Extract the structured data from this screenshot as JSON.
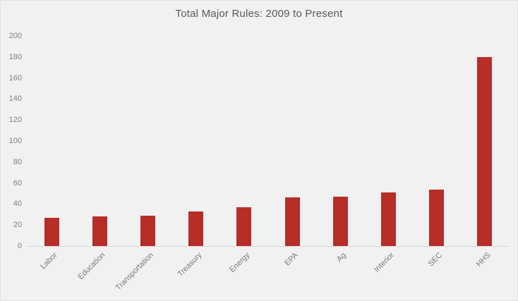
{
  "window": {
    "background_color": "#f1f1f1",
    "border_color": "#e0e0e0"
  },
  "chart_data": {
    "type": "bar",
    "title": "Total Major Rules: 2009 to Present",
    "categories": [
      "Labor",
      "Education",
      "Transportation",
      "Treasury",
      "Energy",
      "EPA",
      "Ag",
      "Interior",
      "SEC",
      "HHS"
    ],
    "values": [
      27,
      28,
      29,
      33,
      37,
      46,
      47,
      51,
      54,
      180
    ],
    "xlabel": "",
    "ylabel": "",
    "ylim": [
      0,
      200
    ],
    "yticks": [
      0,
      20,
      40,
      60,
      80,
      100,
      120,
      140,
      160,
      180,
      200
    ],
    "grid": false,
    "legend": null,
    "x_tick_rotation_deg": 45,
    "bar_color": "#b72d27",
    "axis_line_color": "#d9d9d9",
    "title_color": "#595959",
    "tick_label_color": "#7f7f7f"
  }
}
